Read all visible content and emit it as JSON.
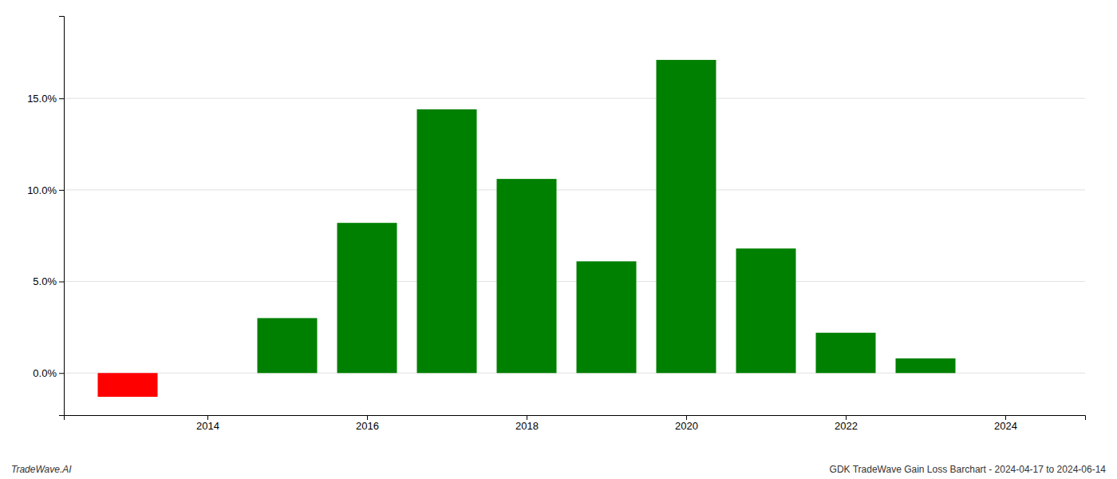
{
  "chart_data": {
    "type": "bar",
    "x": [
      2013,
      2015,
      2016,
      2017,
      2018,
      2019,
      2020,
      2021,
      2022,
      2023
    ],
    "values": [
      -1.3,
      3.0,
      8.2,
      14.4,
      10.6,
      6.1,
      17.1,
      6.8,
      2.2,
      0.8
    ],
    "colors": [
      "#ff0000",
      "#008000",
      "#008000",
      "#008000",
      "#008000",
      "#008000",
      "#008000",
      "#008000",
      "#008000",
      "#008000"
    ],
    "xlim": [
      2012.2,
      2025.0
    ],
    "ylim": [
      -2.3,
      19.5
    ],
    "xticks": [
      2014,
      2016,
      2018,
      2020,
      2022,
      2024
    ],
    "yticks": [
      {
        "value": 0.0,
        "label": "0.0%"
      },
      {
        "value": 5.0,
        "label": "5.0%"
      },
      {
        "value": 10.0,
        "label": "10.0%"
      },
      {
        "value": 15.0,
        "label": "15.0%"
      }
    ],
    "grid": true,
    "annotations": [
      "TradeWave.AI",
      "GDK TradeWave Gain Loss Barchart - 2024-04-17 to 2024-06-14"
    ]
  }
}
